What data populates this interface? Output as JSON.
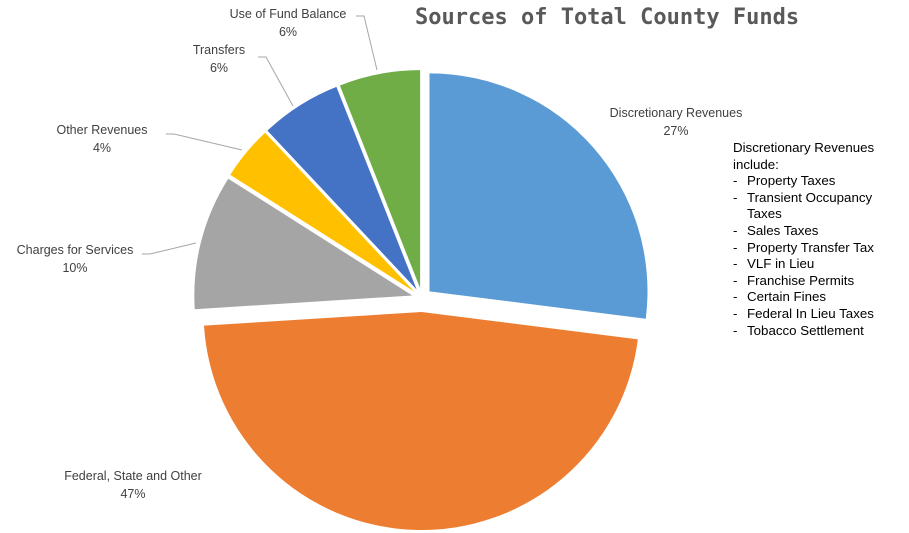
{
  "chart_data": {
    "type": "pie",
    "title": "Sources of Total County Funds",
    "slices": [
      {
        "label": "Discretionary Revenues",
        "value": 27,
        "pct_label": "27%",
        "color": "#5b9bd5"
      },
      {
        "label": "Federal, State and Other",
        "value": 47,
        "pct_label": "47%",
        "color": "#ed7d31"
      },
      {
        "label": "Charges for Services",
        "value": 10,
        "pct_label": "10%",
        "color": "#a5a5a5"
      },
      {
        "label": "Other Revenues",
        "value": 4,
        "pct_label": "4%",
        "color": "#ffc000"
      },
      {
        "label": "Transfers",
        "value": 6,
        "pct_label": "6%",
        "color": "#4472c4"
      },
      {
        "label": "Use of Fund Balance",
        "value": 6,
        "pct_label": "6%",
        "color": "#70ad47"
      }
    ],
    "exploded": true,
    "legend": "none"
  },
  "note": {
    "heading": "Discretionary Revenues include:",
    "dash": "-",
    "items": [
      "Property Taxes",
      "Transient Occupancy Taxes",
      "Sales Taxes",
      "Property Transfer Tax",
      "VLF in Lieu",
      "Franchise Permits",
      "Certain Fines",
      "Federal In Lieu Taxes",
      "Tobacco Settlement"
    ]
  }
}
